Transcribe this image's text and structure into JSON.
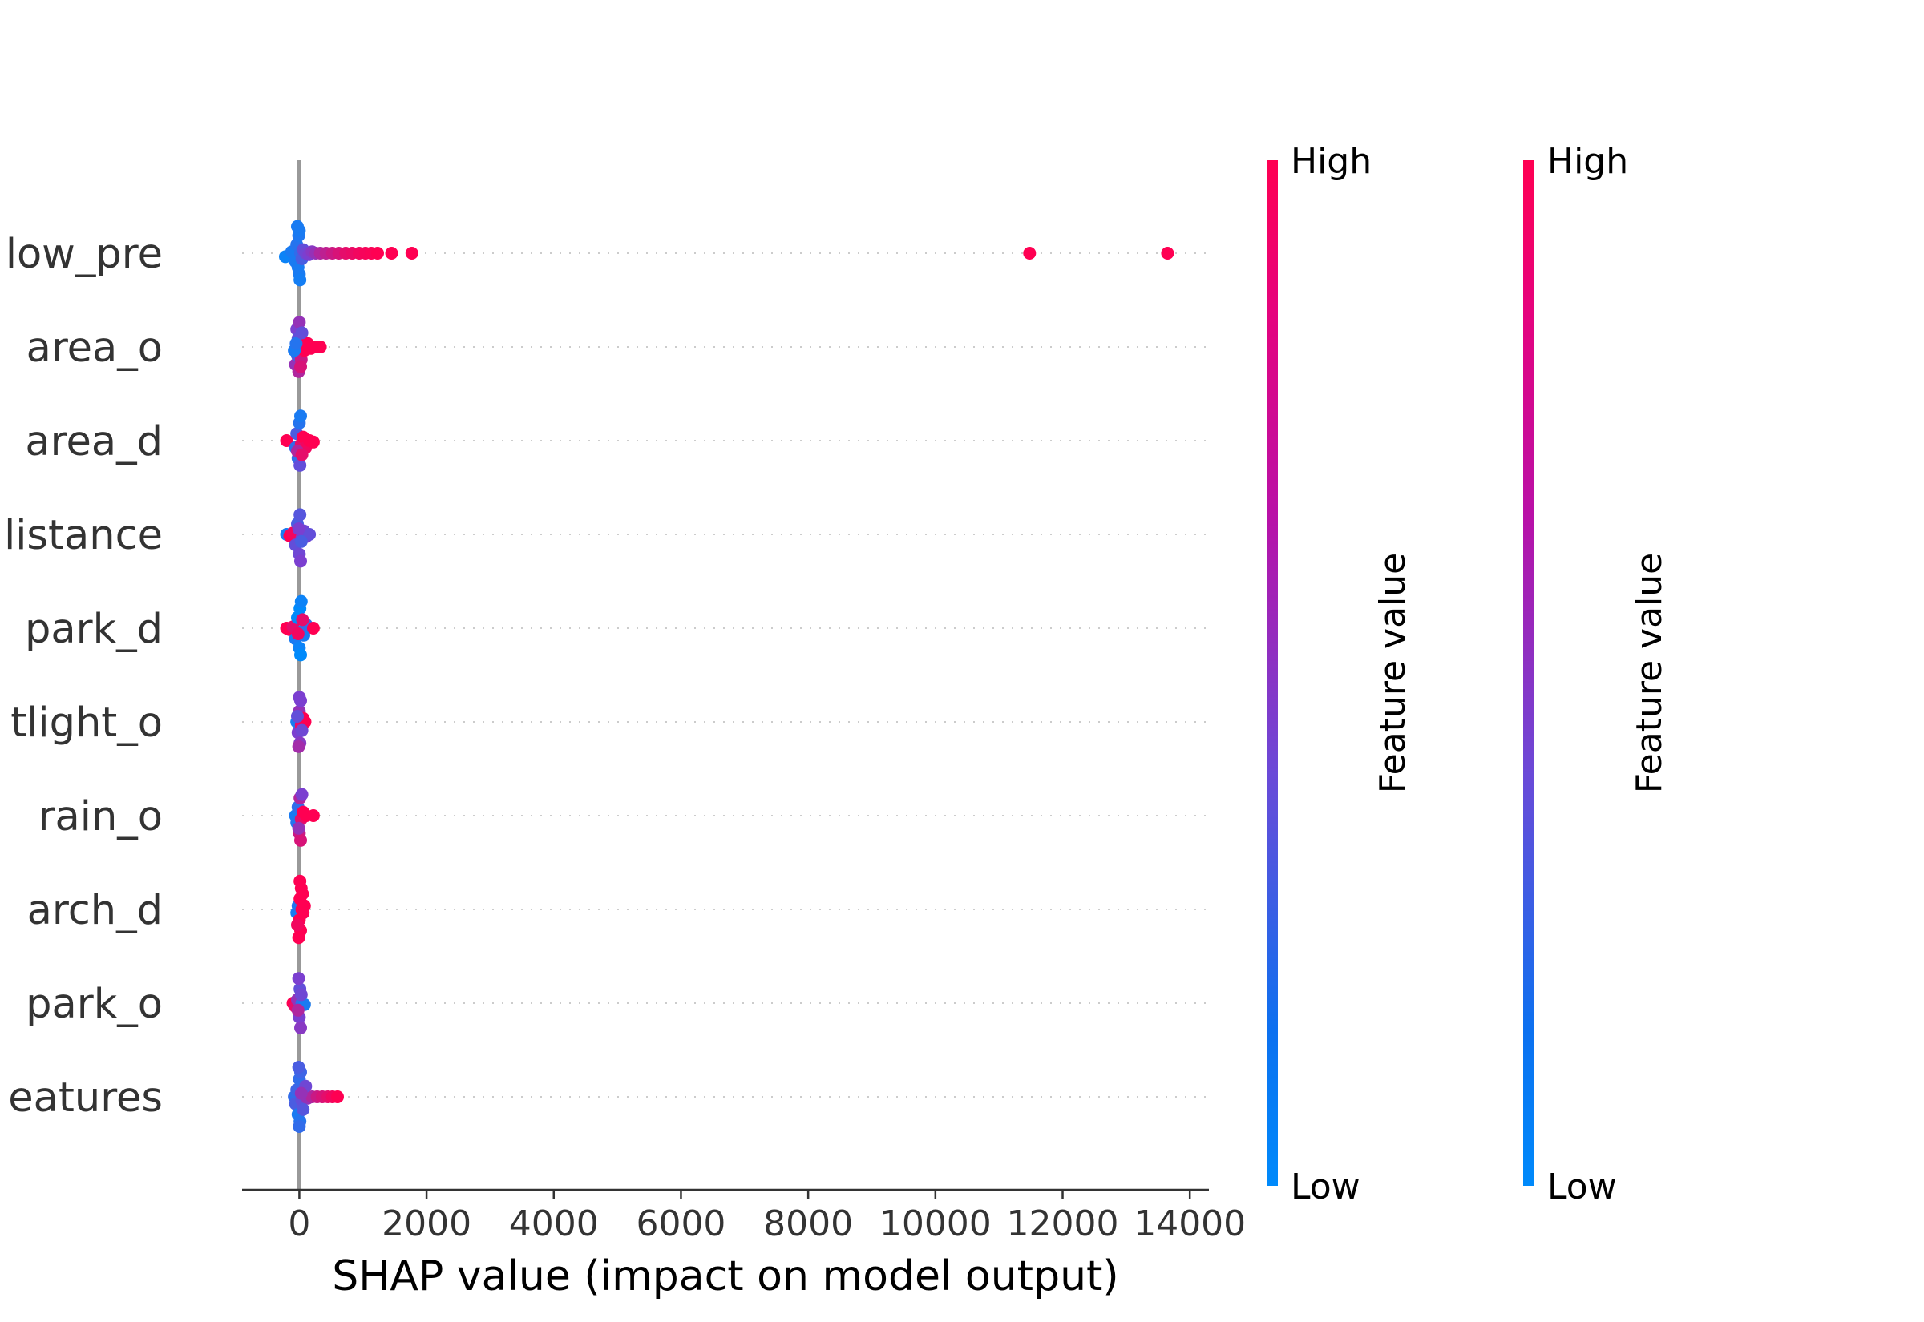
{
  "chart_data": {
    "type": "scatter",
    "subtype": "shap-beeswarm-summary",
    "title": "",
    "xlabel": "SHAP value (impact on model output)",
    "ylabel": "",
    "xlim": [
      -900,
      14300
    ],
    "xticks": [
      0,
      2000,
      4000,
      6000,
      8000,
      10000,
      12000,
      14000
    ],
    "features": [
      {
        "label": "low_pre",
        "points": [
          [
            -220,
            0.05,
            0.05
          ],
          [
            -120,
            -0.02,
            0.1
          ],
          [
            -60,
            0.12,
            0.1
          ],
          [
            -40,
            -0.12,
            0.15
          ],
          [
            -20,
            0.2,
            0.1
          ],
          [
            -10,
            -0.25,
            0.12
          ],
          [
            0,
            0.3,
            0.1
          ],
          [
            0,
            -0.32,
            0.1
          ],
          [
            10,
            0.38,
            0.08
          ],
          [
            -30,
            -0.38,
            0.1
          ],
          [
            20,
            0.0,
            0.2
          ],
          [
            40,
            0.08,
            0.3
          ],
          [
            60,
            -0.05,
            0.4
          ],
          [
            100,
            0.0,
            0.45
          ],
          [
            150,
            0.02,
            0.5
          ],
          [
            200,
            -0.02,
            0.55
          ],
          [
            260,
            0.0,
            0.6
          ],
          [
            330,
            0.0,
            0.7
          ],
          [
            420,
            0.0,
            0.75
          ],
          [
            520,
            0.0,
            0.8
          ],
          [
            620,
            0.0,
            0.85
          ],
          [
            730,
            0.0,
            0.9
          ],
          [
            830,
            0.0,
            0.92
          ],
          [
            940,
            0.0,
            0.95
          ],
          [
            1040,
            0.0,
            0.97
          ],
          [
            1130,
            0.0,
            0.98
          ],
          [
            1230,
            0.0,
            1.0
          ],
          [
            1450,
            0.0,
            1.0
          ],
          [
            1770,
            0.0,
            1.0
          ],
          [
            11480,
            0.0,
            1.0
          ],
          [
            13650,
            0.0,
            1.0
          ]
        ]
      },
      {
        "label": "area_o",
        "points": [
          [
            -60,
            0.25,
            0.6
          ],
          [
            -40,
            -0.25,
            0.5
          ],
          [
            -30,
            0.12,
            0.3
          ],
          [
            -20,
            -0.12,
            0.4
          ],
          [
            -10,
            0.35,
            0.7
          ],
          [
            0,
            -0.35,
            0.6
          ],
          [
            10,
            0.0,
            0.5
          ],
          [
            30,
            0.18,
            0.8
          ],
          [
            50,
            -0.08,
            0.9
          ],
          [
            80,
            0.05,
            1.0
          ],
          [
            130,
            -0.05,
            1.0
          ],
          [
            180,
            0.02,
            1.0
          ],
          [
            240,
            0.0,
            1.0
          ],
          [
            330,
            0.0,
            1.0
          ],
          [
            -80,
            0.05,
            0.1
          ],
          [
            -50,
            -0.05,
            0.15
          ],
          [
            20,
            0.28,
            0.85
          ],
          [
            40,
            -0.2,
            0.4
          ]
        ]
      },
      {
        "label": "area_d",
        "points": [
          [
            -200,
            0.0,
            1.0
          ],
          [
            -60,
            0.1,
            0.2
          ],
          [
            -40,
            -0.1,
            0.3
          ],
          [
            -20,
            0.25,
            0.2
          ],
          [
            0,
            -0.25,
            0.15
          ],
          [
            10,
            0.35,
            0.4
          ],
          [
            20,
            -0.35,
            0.1
          ],
          [
            30,
            0.05,
            0.9
          ],
          [
            60,
            -0.05,
            1.0
          ],
          [
            100,
            0.1,
            0.95
          ],
          [
            160,
            0.0,
            1.0
          ],
          [
            220,
            0.02,
            1.0
          ],
          [
            -30,
            0.15,
            0.7
          ],
          [
            40,
            0.2,
            0.9
          ]
        ]
      },
      {
        "label": "listance",
        "points": [
          [
            -200,
            0.0,
            0.1
          ],
          [
            -150,
            0.02,
            1.0
          ],
          [
            -100,
            -0.02,
            0.95
          ],
          [
            -60,
            0.15,
            0.4
          ],
          [
            -30,
            -0.15,
            0.3
          ],
          [
            0,
            0.28,
            0.45
          ],
          [
            10,
            -0.28,
            0.35
          ],
          [
            20,
            0.38,
            0.5
          ],
          [
            40,
            0.05,
            0.55
          ],
          [
            70,
            -0.05,
            0.45
          ],
          [
            110,
            0.03,
            0.5
          ],
          [
            160,
            0.0,
            0.4
          ],
          [
            30,
            0.1,
            0.3
          ],
          [
            -10,
            -0.08,
            0.5
          ]
        ]
      },
      {
        "label": "park_d",
        "points": [
          [
            -200,
            0.0,
            1.0
          ],
          [
            -150,
            0.02,
            1.0
          ],
          [
            -100,
            -0.02,
            0.9
          ],
          [
            -60,
            0.15,
            0.1
          ],
          [
            -30,
            -0.15,
            0.0
          ],
          [
            0,
            0.28,
            0.05
          ],
          [
            10,
            -0.28,
            0.0
          ],
          [
            20,
            0.38,
            0.0
          ],
          [
            30,
            -0.38,
            0.05
          ],
          [
            40,
            0.05,
            0.0
          ],
          [
            70,
            0.1,
            0.1
          ],
          [
            110,
            -0.05,
            0.2
          ],
          [
            220,
            0.0,
            1.0
          ],
          [
            -20,
            0.08,
            0.95
          ],
          [
            50,
            -0.12,
            0.9
          ]
        ]
      },
      {
        "label": "tlight_o",
        "points": [
          [
            -40,
            0.0,
            0.1
          ],
          [
            -20,
            0.15,
            0.5
          ],
          [
            0,
            -0.15,
            0.6
          ],
          [
            10,
            0.3,
            0.55
          ],
          [
            20,
            -0.3,
            0.5
          ],
          [
            30,
            0.05,
            0.9
          ],
          [
            60,
            -0.05,
            1.0
          ],
          [
            90,
            0.0,
            1.0
          ],
          [
            -10,
            0.35,
            0.65
          ],
          [
            0,
            -0.35,
            0.5
          ],
          [
            40,
            0.12,
            0.45
          ],
          [
            -30,
            -0.08,
            0.4
          ]
        ]
      },
      {
        "label": "rain_o",
        "points": [
          [
            -60,
            0.0,
            0.1
          ],
          [
            -40,
            0.1,
            0.15
          ],
          [
            -20,
            -0.12,
            0.2
          ],
          [
            0,
            0.25,
            0.8
          ],
          [
            10,
            -0.25,
            0.7
          ],
          [
            20,
            0.35,
            0.85
          ],
          [
            30,
            0.05,
            0.9
          ],
          [
            60,
            -0.05,
            1.0
          ],
          [
            110,
            0.0,
            1.0
          ],
          [
            220,
            0.0,
            1.0
          ],
          [
            -10,
            0.18,
            0.6
          ],
          [
            40,
            -0.3,
            0.5
          ]
        ]
      },
      {
        "label": "arch_d",
        "points": [
          [
            -40,
            0.05,
            0.1
          ],
          [
            -20,
            -0.05,
            0.15
          ],
          [
            0,
            0.15,
            1.0
          ],
          [
            10,
            -0.15,
            1.0
          ],
          [
            20,
            0.3,
            1.0
          ],
          [
            30,
            -0.3,
            1.0
          ],
          [
            -10,
            0.4,
            1.0
          ],
          [
            10,
            -0.4,
            1.0
          ],
          [
            40,
            0.0,
            1.0
          ],
          [
            60,
            0.05,
            1.0
          ],
          [
            80,
            -0.05,
            1.0
          ],
          [
            -30,
            0.22,
            0.95
          ],
          [
            50,
            -0.22,
            1.0
          ]
        ]
      },
      {
        "label": "park_o",
        "points": [
          [
            -100,
            0.0,
            1.0
          ],
          [
            -60,
            0.05,
            0.9
          ],
          [
            -30,
            -0.05,
            0.6
          ],
          [
            0,
            0.2,
            0.5
          ],
          [
            10,
            -0.2,
            0.4
          ],
          [
            20,
            0.35,
            0.55
          ],
          [
            -10,
            -0.35,
            0.5
          ],
          [
            40,
            0.0,
            0.2
          ],
          [
            80,
            0.02,
            0.1
          ],
          [
            -20,
            0.1,
            0.7
          ],
          [
            30,
            -0.12,
            0.45
          ]
        ]
      },
      {
        "label": "eatures",
        "points": [
          [
            -80,
            0.0,
            0.2
          ],
          [
            -60,
            0.1,
            0.3
          ],
          [
            -40,
            -0.1,
            0.25
          ],
          [
            -20,
            0.25,
            0.1
          ],
          [
            0,
            -0.25,
            0.2
          ],
          [
            10,
            0.35,
            0.15
          ],
          [
            20,
            -0.35,
            0.25
          ],
          [
            40,
            0.05,
            0.4
          ],
          [
            80,
            -0.05,
            0.5
          ],
          [
            130,
            0.02,
            0.6
          ],
          [
            200,
            0.0,
            0.7
          ],
          [
            280,
            0.0,
            0.8
          ],
          [
            360,
            0.0,
            0.85
          ],
          [
            450,
            0.0,
            0.9
          ],
          [
            520,
            0.0,
            0.95
          ],
          [
            600,
            0.0,
            1.0
          ],
          [
            60,
            0.18,
            0.35
          ],
          [
            100,
            -0.15,
            0.45
          ],
          [
            0,
            0.42,
            0.2
          ],
          [
            -10,
            -0.42,
            0.3
          ],
          [
            30,
            -0.05,
            0.6
          ]
        ]
      }
    ],
    "colorbars": [
      {
        "high_label": "High",
        "low_label": "Low",
        "title": "Feature value"
      },
      {
        "high_label": "High",
        "low_label": "Low",
        "title": "Feature value"
      }
    ],
    "colors": {
      "low": "#008afb",
      "mid": "#7b3fd0",
      "high": "#ff0052",
      "zero_line": "#999999",
      "grid": "#cccccc",
      "axis": "#333333",
      "text": "#333333"
    }
  }
}
